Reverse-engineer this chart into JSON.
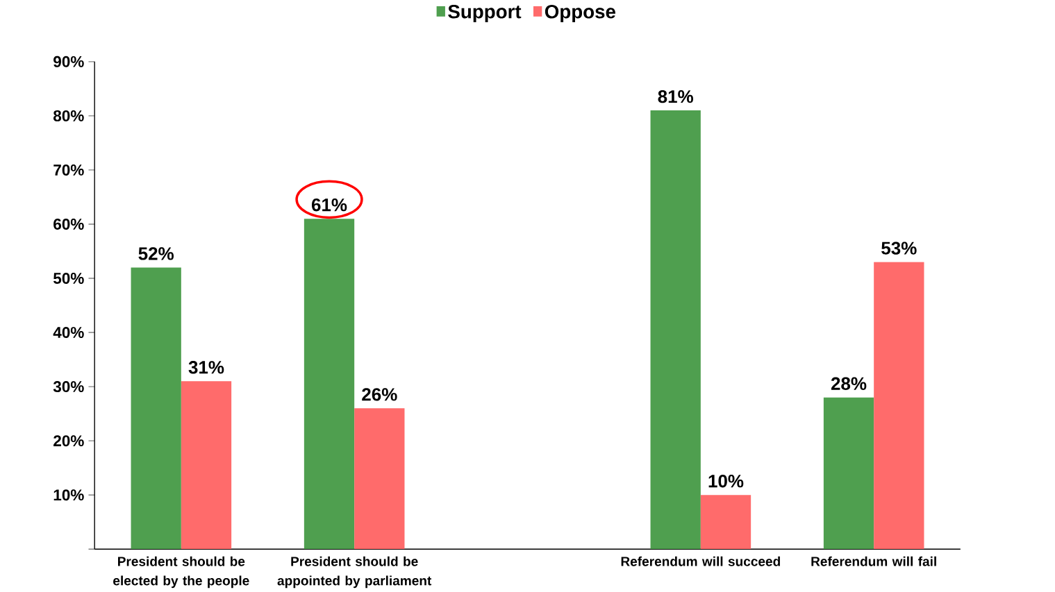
{
  "chart_data": {
    "type": "bar",
    "categories": [
      "President should be elected by the people",
      "President should be appointed by parliament",
      null,
      "Referendum will succeed",
      "Referendum will fail"
    ],
    "series": [
      {
        "name": "Support",
        "color": "#4f9f4f",
        "values": [
          52,
          61,
          null,
          81,
          28
        ],
        "value_labels": [
          "52%",
          "61%",
          null,
          "81%",
          "28%"
        ]
      },
      {
        "name": "Oppose",
        "color": "#ff6b6b",
        "values": [
          31,
          26,
          null,
          10,
          53
        ],
        "value_labels": [
          "31%",
          "26%",
          null,
          "10%",
          "53%"
        ]
      }
    ],
    "ylim": [
      0,
      90
    ],
    "yticks": [
      {
        "value": 0,
        "label": null
      },
      {
        "value": 10,
        "label": "10%"
      },
      {
        "value": 20,
        "label": "20%"
      },
      {
        "value": 30,
        "label": "30%"
      },
      {
        "value": 40,
        "label": "40%"
      },
      {
        "value": 50,
        "label": "50%"
      },
      {
        "value": 60,
        "label": "60%"
      },
      {
        "value": 70,
        "label": "70%"
      },
      {
        "value": 80,
        "label": "80%"
      },
      {
        "value": 90,
        "label": "90%"
      }
    ],
    "grid": false,
    "legend": "top"
  }
}
